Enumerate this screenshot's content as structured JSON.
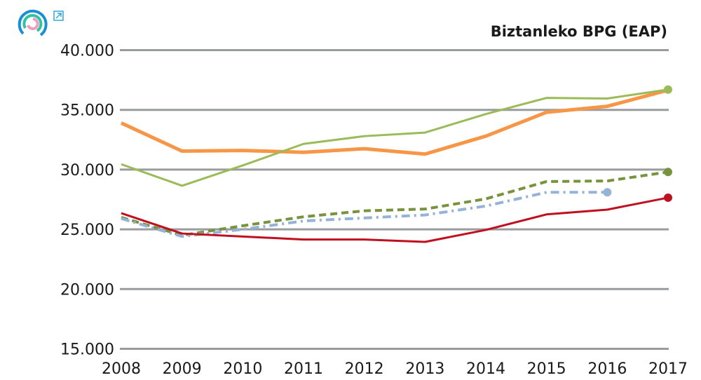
{
  "chart_data": {
    "type": "line",
    "title": "Biztanleko BPG (EAP)",
    "xlabel": "",
    "ylabel": "",
    "x": [
      2008,
      2009,
      2010,
      2011,
      2012,
      2013,
      2014,
      2015,
      2016,
      2017
    ],
    "x_tick_labels": [
      "2008",
      "2009",
      "2010",
      "2011",
      "2012",
      "2013",
      "2014",
      "2015",
      "2016",
      "2017"
    ],
    "ylim": [
      15000,
      40000
    ],
    "y_ticks": [
      15000,
      20000,
      25000,
      30000,
      35000,
      40000
    ],
    "y_tick_labels": [
      "15.000",
      "20.000",
      "25.000",
      "30.000",
      "35.000",
      "40.000"
    ],
    "grid": "horizontal",
    "legend": "none",
    "series": [
      {
        "color": "#f79646",
        "style": "solid",
        "width": 5,
        "end_marker": false,
        "values": [
          33900,
          31550,
          31600,
          31450,
          31750,
          31300,
          32800,
          34800,
          35300,
          36650
        ]
      },
      {
        "color": "#9bbb59",
        "style": "solid",
        "width": 3,
        "end_marker": true,
        "values": [
          30450,
          28650,
          30350,
          32150,
          32800,
          33100,
          34650,
          36000,
          35950,
          36700
        ]
      },
      {
        "color": "#77933c",
        "style": "dashed",
        "width": 4,
        "end_marker": true,
        "values": [
          26000,
          24500,
          25300,
          26050,
          26550,
          26700,
          27550,
          29000,
          29050,
          29800
        ]
      },
      {
        "color": "#95b3d7",
        "style": "dashdot",
        "width": 4,
        "end_marker": true,
        "values": [
          25900,
          24400,
          25000,
          25700,
          25950,
          26200,
          26950,
          28100,
          28100,
          null
        ]
      },
      {
        "color": "#c00f1f",
        "style": "solid",
        "width": 3,
        "end_marker": true,
        "values": [
          26350,
          24650,
          24400,
          24150,
          24150,
          23950,
          24950,
          26250,
          26650,
          27650
        ]
      }
    ]
  },
  "colors": {
    "grid": "#999c9f",
    "logo_outer": "#1b8fd6",
    "logo_middle": "#2fc3a0",
    "logo_inner": "#f09cbf",
    "expand_icon": "#2fa9dc"
  },
  "icons": {
    "logo": "circular-logo-icon",
    "expand": "external-link-icon"
  }
}
